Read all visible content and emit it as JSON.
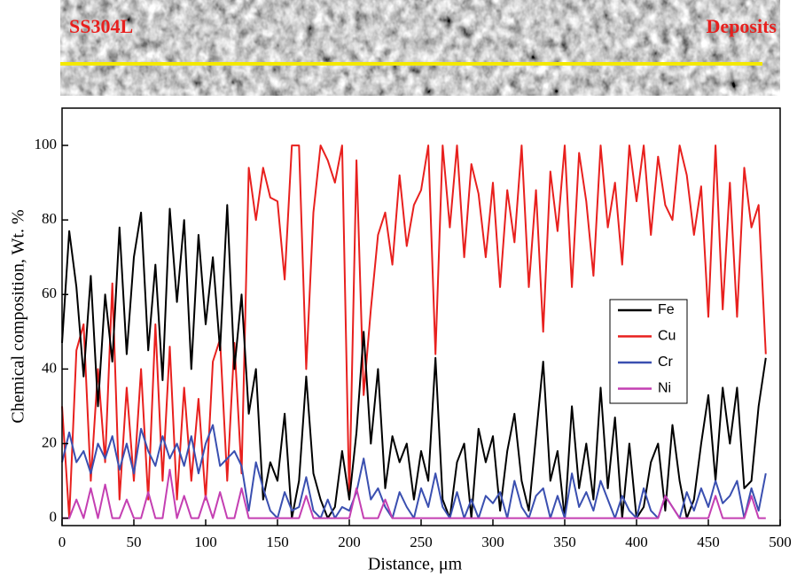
{
  "chart_data": {
    "type": "line",
    "annotations": [
      "SS304L",
      "Deposits"
    ],
    "xlabel": "Distance, μm",
    "ylabel": "Chemical composition, Wt. %",
    "x": [
      0,
      5,
      10,
      15,
      20,
      25,
      30,
      35,
      40,
      45,
      50,
      55,
      60,
      65,
      70,
      75,
      80,
      85,
      90,
      95,
      100,
      105,
      110,
      115,
      120,
      125,
      130,
      135,
      140,
      145,
      150,
      155,
      160,
      165,
      170,
      175,
      180,
      185,
      190,
      195,
      200,
      205,
      210,
      215,
      220,
      225,
      230,
      235,
      240,
      245,
      250,
      255,
      260,
      265,
      270,
      275,
      280,
      285,
      290,
      295,
      300,
      305,
      310,
      315,
      320,
      325,
      330,
      335,
      340,
      345,
      350,
      355,
      360,
      365,
      370,
      375,
      380,
      385,
      390,
      395,
      400,
      405,
      410,
      415,
      420,
      425,
      430,
      435,
      440,
      445,
      450,
      455,
      460,
      465,
      470,
      475,
      480,
      485,
      490
    ],
    "series": [
      {
        "name": "Fe",
        "color": "#000000",
        "values": [
          47,
          77,
          62,
          38,
          65,
          30,
          60,
          42,
          78,
          44,
          70,
          82,
          45,
          68,
          37,
          83,
          58,
          80,
          40,
          76,
          52,
          70,
          45,
          84,
          40,
          60,
          28,
          40,
          5,
          15,
          10,
          28,
          0,
          10,
          38,
          12,
          5,
          0,
          3,
          18,
          5,
          23,
          50,
          20,
          40,
          8,
          22,
          15,
          20,
          5,
          18,
          10,
          43,
          5,
          0,
          15,
          20,
          0,
          24,
          15,
          22,
          2,
          18,
          28,
          10,
          2,
          22,
          42,
          10,
          18,
          0,
          30,
          8,
          20,
          5,
          35,
          8,
          27,
          0,
          20,
          0,
          3,
          15,
          20,
          2,
          25,
          10,
          0,
          5,
          20,
          33,
          10,
          35,
          20,
          35,
          8,
          10,
          30,
          43
        ]
      },
      {
        "name": "Cu",
        "color": "#e8201e",
        "values": [
          30,
          0,
          45,
          52,
          10,
          40,
          15,
          63,
          5,
          35,
          10,
          40,
          5,
          52,
          10,
          46,
          5,
          35,
          10,
          32,
          5,
          42,
          48,
          10,
          47,
          12,
          94,
          80,
          94,
          86,
          85,
          64,
          100,
          100,
          40,
          82,
          100,
          96,
          90,
          100,
          5,
          96,
          33,
          56,
          76,
          82,
          68,
          92,
          73,
          84,
          88,
          100,
          44,
          100,
          78,
          100,
          70,
          95,
          87,
          70,
          90,
          62,
          88,
          74,
          100,
          62,
          88,
          50,
          93,
          77,
          100,
          62,
          98,
          85,
          65,
          100,
          78,
          90,
          68,
          100,
          85,
          100,
          76,
          97,
          84,
          80,
          100,
          92,
          76,
          89,
          54,
          100,
          56,
          90,
          54,
          94,
          78,
          84,
          44
        ]
      },
      {
        "name": "Cr",
        "color": "#3a4fb0",
        "values": [
          15,
          23,
          15,
          18,
          12,
          20,
          16,
          22,
          13,
          20,
          12,
          24,
          18,
          14,
          22,
          16,
          20,
          14,
          22,
          12,
          20,
          25,
          14,
          16,
          18,
          14,
          2,
          15,
          8,
          2,
          0,
          7,
          2,
          3,
          11,
          2,
          0,
          5,
          0,
          3,
          2,
          7,
          16,
          5,
          8,
          3,
          0,
          7,
          3,
          0,
          8,
          3,
          12,
          3,
          0,
          7,
          0,
          5,
          0,
          6,
          4,
          7,
          0,
          10,
          3,
          0,
          6,
          8,
          0,
          6,
          0,
          12,
          3,
          7,
          2,
          10,
          5,
          0,
          6,
          2,
          0,
          8,
          2,
          0,
          6,
          3,
          0,
          7,
          2,
          8,
          3,
          10,
          4,
          6,
          10,
          0,
          8,
          2,
          12
        ]
      },
      {
        "name": "Ni",
        "color": "#c43fb2",
        "values": [
          0,
          0,
          5,
          0,
          8,
          0,
          9,
          0,
          0,
          5,
          0,
          0,
          7,
          0,
          0,
          13,
          0,
          6,
          0,
          0,
          6,
          0,
          7,
          0,
          0,
          8,
          0,
          0,
          0,
          0,
          0,
          0,
          0,
          0,
          6,
          0,
          0,
          0,
          0,
          0,
          0,
          8,
          0,
          0,
          0,
          5,
          0,
          0,
          0,
          0,
          0,
          0,
          0,
          0,
          0,
          0,
          0,
          0,
          0,
          0,
          0,
          0,
          0,
          0,
          0,
          0,
          0,
          0,
          0,
          0,
          0,
          0,
          0,
          0,
          0,
          0,
          0,
          0,
          0,
          0,
          0,
          0,
          0,
          0,
          6,
          3,
          0,
          0,
          0,
          0,
          0,
          6,
          0,
          0,
          0,
          0,
          6,
          0,
          0
        ]
      }
    ],
    "xlim": [
      0,
      500
    ],
    "xticks": [
      0,
      50,
      100,
      150,
      200,
      250,
      300,
      350,
      400,
      450,
      500
    ],
    "ylim": [
      -2,
      110
    ],
    "yticks": [
      0,
      20,
      40,
      60,
      80,
      100
    ]
  }
}
